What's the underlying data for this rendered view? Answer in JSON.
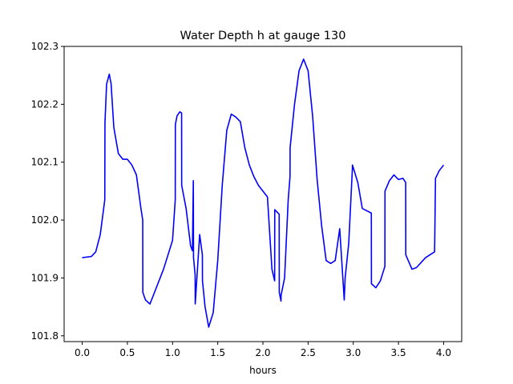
{
  "chart_data": {
    "type": "line",
    "title": "Water Depth h at gauge 130",
    "xlabel": "hours",
    "ylabel": "",
    "xlim": [
      -0.2,
      4.2
    ],
    "ylim": [
      101.79,
      102.3
    ],
    "xticks": [
      0.0,
      0.5,
      1.0,
      1.5,
      2.0,
      2.5,
      3.0,
      3.5,
      4.0
    ],
    "xtick_labels": [
      "0.0",
      "0.5",
      "1.0",
      "1.5",
      "2.0",
      "2.5",
      "3.0",
      "3.5",
      "4.0"
    ],
    "yticks": [
      101.8,
      101.9,
      102.0,
      102.1,
      102.2,
      102.3
    ],
    "ytick_labels": [
      "101.8",
      "101.9",
      "102.0",
      "102.1",
      "102.2",
      "102.3"
    ],
    "grid": false,
    "legend": "none",
    "series": [
      {
        "color": "#0000ff",
        "x": [
          0.0,
          0.1,
          0.15,
          0.2,
          0.25,
          0.252,
          0.27,
          0.3,
          0.32,
          0.35,
          0.4,
          0.45,
          0.5,
          0.55,
          0.6,
          0.65,
          0.67,
          0.671,
          0.7,
          0.75,
          0.8,
          0.9,
          1.0,
          1.03,
          1.031,
          1.05,
          1.08,
          1.1,
          1.101,
          1.15,
          1.2,
          1.22,
          1.23,
          1.232,
          1.25,
          1.251,
          1.3,
          1.33,
          1.331,
          1.36,
          1.4,
          1.45,
          1.5,
          1.55,
          1.6,
          1.65,
          1.7,
          1.75,
          1.8,
          1.85,
          1.9,
          1.95,
          2.0,
          2.05,
          2.1,
          2.13,
          2.131,
          2.18,
          2.181,
          2.2,
          2.201,
          2.24,
          2.28,
          2.3,
          2.301,
          2.35,
          2.4,
          2.45,
          2.5,
          2.55,
          2.6,
          2.65,
          2.7,
          2.75,
          2.8,
          2.85,
          2.9,
          2.91,
          2.95,
          2.99,
          2.991,
          3.05,
          3.1,
          3.2,
          3.201,
          3.25,
          3.3,
          3.35,
          3.351,
          3.4,
          3.45,
          3.5,
          3.55,
          3.58,
          3.581,
          3.65,
          3.7,
          3.8,
          3.9,
          3.91,
          3.95,
          4.0
        ],
        "y": [
          101.935,
          101.937,
          101.945,
          101.975,
          102.035,
          102.168,
          102.235,
          102.252,
          102.235,
          102.16,
          102.115,
          102.105,
          102.105,
          102.095,
          102.078,
          102.02,
          102.0,
          101.875,
          101.862,
          101.855,
          101.875,
          101.915,
          101.965,
          102.035,
          102.165,
          102.18,
          102.187,
          102.185,
          102.06,
          102.02,
          101.955,
          101.947,
          102.068,
          101.935,
          101.905,
          101.855,
          101.975,
          101.94,
          101.895,
          101.85,
          101.815,
          101.84,
          101.93,
          102.06,
          102.155,
          102.183,
          102.178,
          102.17,
          102.125,
          102.095,
          102.075,
          102.06,
          102.05,
          102.04,
          101.915,
          101.895,
          102.018,
          102.01,
          101.875,
          101.86,
          101.87,
          101.9,
          102.035,
          102.075,
          102.125,
          102.2,
          102.258,
          102.278,
          102.258,
          102.18,
          102.07,
          101.99,
          101.93,
          101.925,
          101.93,
          101.985,
          101.862,
          101.9,
          101.96,
          102.088,
          102.095,
          102.065,
          102.02,
          102.012,
          101.89,
          101.883,
          101.895,
          101.92,
          102.05,
          102.068,
          102.078,
          102.07,
          102.072,
          102.065,
          101.94,
          101.915,
          101.918,
          101.935,
          101.945,
          102.072,
          102.085,
          102.095
        ]
      }
    ]
  }
}
